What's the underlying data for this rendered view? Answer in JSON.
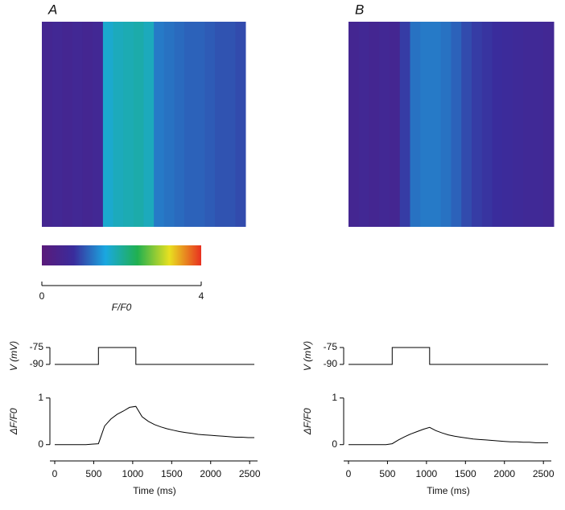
{
  "chart_data": [
    {
      "type": "heatmap",
      "title": "A",
      "values": [
        0.55,
        0.6,
        0.55,
        0.6,
        0.55,
        0.6,
        1.7,
        1.8,
        1.85,
        1.9,
        1.8,
        1.3,
        1.25,
        1.2,
        1.15,
        1.15,
        1.1,
        1.05,
        1.05,
        1.0
      ]
    },
    {
      "type": "colorbar",
      "xlabel": "F/F0",
      "xlim": [
        0,
        4
      ],
      "xticks": [
        0,
        4
      ],
      "colors": [
        "#5a1a7a",
        "#3a2c9c",
        "#1aa8e0",
        "#20b050",
        "#e8e020",
        "#e83020"
      ]
    },
    {
      "type": "line",
      "ylabel": "V (mV)",
      "xlim": [
        0,
        2560
      ],
      "ylim": [
        -90,
        -75
      ],
      "yticks": [
        -75,
        -90
      ],
      "color": "#000000",
      "x": [
        0,
        560,
        560,
        1040,
        1040,
        2560
      ],
      "values": [
        -90,
        -90,
        -75,
        -75,
        -90,
        -90
      ]
    },
    {
      "type": "line",
      "ylabel": "ΔF/F0",
      "xlabel": "Time (ms)",
      "xlim": [
        0,
        2560
      ],
      "ylim": [
        -0.35,
        1.1
      ],
      "yticks": [
        0,
        1
      ],
      "xticks": [
        0,
        500,
        1000,
        1500,
        2000,
        2500
      ],
      "color": "#000000",
      "x": [
        0,
        80,
        160,
        240,
        320,
        400,
        480,
        560,
        640,
        720,
        800,
        880,
        960,
        1040,
        1120,
        1200,
        1280,
        1360,
        1440,
        1520,
        1600,
        1680,
        1760,
        1840,
        1920,
        2000,
        2080,
        2160,
        2240,
        2320,
        2400,
        2480,
        2560
      ],
      "values": [
        0,
        0,
        0,
        0,
        0,
        0,
        0.01,
        0.02,
        0.4,
        0.55,
        0.65,
        0.72,
        0.8,
        0.82,
        0.6,
        0.5,
        0.43,
        0.38,
        0.34,
        0.31,
        0.28,
        0.26,
        0.24,
        0.22,
        0.21,
        0.2,
        0.19,
        0.18,
        0.17,
        0.16,
        0.16,
        0.15,
        0.15
      ]
    },
    {
      "type": "heatmap",
      "title": "B",
      "values": [
        0.55,
        0.6,
        0.55,
        0.6,
        0.55,
        0.9,
        1.25,
        1.3,
        1.3,
        1.25,
        1.15,
        1.0,
        0.9,
        0.85,
        0.8,
        0.75,
        0.7,
        0.65,
        0.65,
        0.6
      ]
    },
    {
      "type": "line",
      "ylabel": "V (mV)",
      "xlim": [
        0,
        2560
      ],
      "ylim": [
        -90,
        -75
      ],
      "yticks": [
        -75,
        -90
      ],
      "color": "#000000",
      "x": [
        0,
        560,
        560,
        1040,
        1040,
        2560
      ],
      "values": [
        -90,
        -90,
        -75,
        -75,
        -90,
        -90
      ]
    },
    {
      "type": "line",
      "ylabel": "ΔF/F0",
      "xlabel": "Time (ms)",
      "xlim": [
        0,
        2560
      ],
      "ylim": [
        -0.35,
        1.1
      ],
      "yticks": [
        0,
        1
      ],
      "xticks": [
        0,
        500,
        1000,
        1500,
        2000,
        2500
      ],
      "color": "#000000",
      "x": [
        0,
        80,
        160,
        240,
        320,
        400,
        480,
        560,
        640,
        720,
        800,
        880,
        960,
        1040,
        1120,
        1200,
        1280,
        1360,
        1440,
        1520,
        1600,
        1680,
        1760,
        1840,
        1920,
        2000,
        2080,
        2160,
        2240,
        2320,
        2400,
        2480,
        2560
      ],
      "values": [
        0,
        0,
        0,
        0,
        0,
        0,
        0,
        0.02,
        0.1,
        0.17,
        0.23,
        0.28,
        0.33,
        0.37,
        0.3,
        0.25,
        0.21,
        0.18,
        0.16,
        0.14,
        0.12,
        0.11,
        0.1,
        0.09,
        0.08,
        0.07,
        0.06,
        0.06,
        0.05,
        0.05,
        0.04,
        0.04,
        0.04
      ]
    }
  ]
}
